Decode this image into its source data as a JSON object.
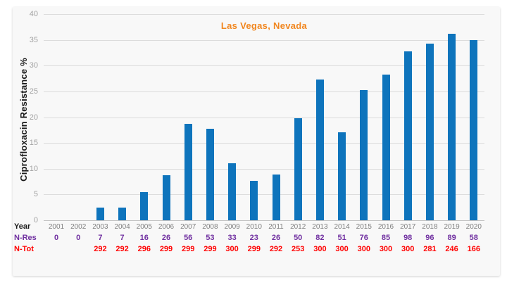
{
  "colors": {
    "bar": "#0e74bc",
    "title": "#f1861e",
    "grid": "#dcdcdc",
    "axis_line": "#c2c2c2",
    "ytick_text": "#a3a3a3",
    "year_text": "#7f7f7f",
    "year_header": "#1a1a1a",
    "nres": "#7030a0",
    "ntot": "#ff0000",
    "panel_bg": "#f8f8f8"
  },
  "chart_data": {
    "type": "bar",
    "title": "Las Vegas, Nevada",
    "xlabel": "",
    "ylabel": "Ciprofloxacin Resistance %",
    "ylim": [
      0,
      40
    ],
    "yticks": [
      0,
      5,
      10,
      15,
      20,
      25,
      30,
      35,
      40
    ],
    "grid": true,
    "legend": "none",
    "categories": [
      "2001",
      "2002",
      "2003",
      "2004",
      "2005",
      "2006",
      "2007",
      "2008",
      "2009",
      "2010",
      "2011",
      "2012",
      "2013",
      "2014",
      "2015",
      "2016",
      "2017",
      "2018",
      "2019",
      "2020"
    ],
    "series": [
      {
        "name": "Ciprofloxacin Resistance %",
        "values": [
          0,
          0,
          2.4,
          2.4,
          5.4,
          8.7,
          18.7,
          17.7,
          11.0,
          7.7,
          8.9,
          19.8,
          27.3,
          17.0,
          25.3,
          28.3,
          32.7,
          34.2,
          36.2,
          34.9
        ]
      }
    ],
    "table": {
      "row_headers": [
        "Year",
        "N-Res",
        "N-Tot"
      ],
      "n_res": [
        "0",
        "0",
        "7",
        "7",
        "16",
        "26",
        "56",
        "53",
        "33",
        "23",
        "26",
        "50",
        "82",
        "51",
        "76",
        "85",
        "98",
        "96",
        "89",
        "58"
      ],
      "n_tot": [
        "",
        "",
        "292",
        "292",
        "296",
        "299",
        "299",
        "299",
        "300",
        "299",
        "292",
        "253",
        "300",
        "300",
        "300",
        "300",
        "300",
        "281",
        "246",
        "166"
      ]
    }
  }
}
